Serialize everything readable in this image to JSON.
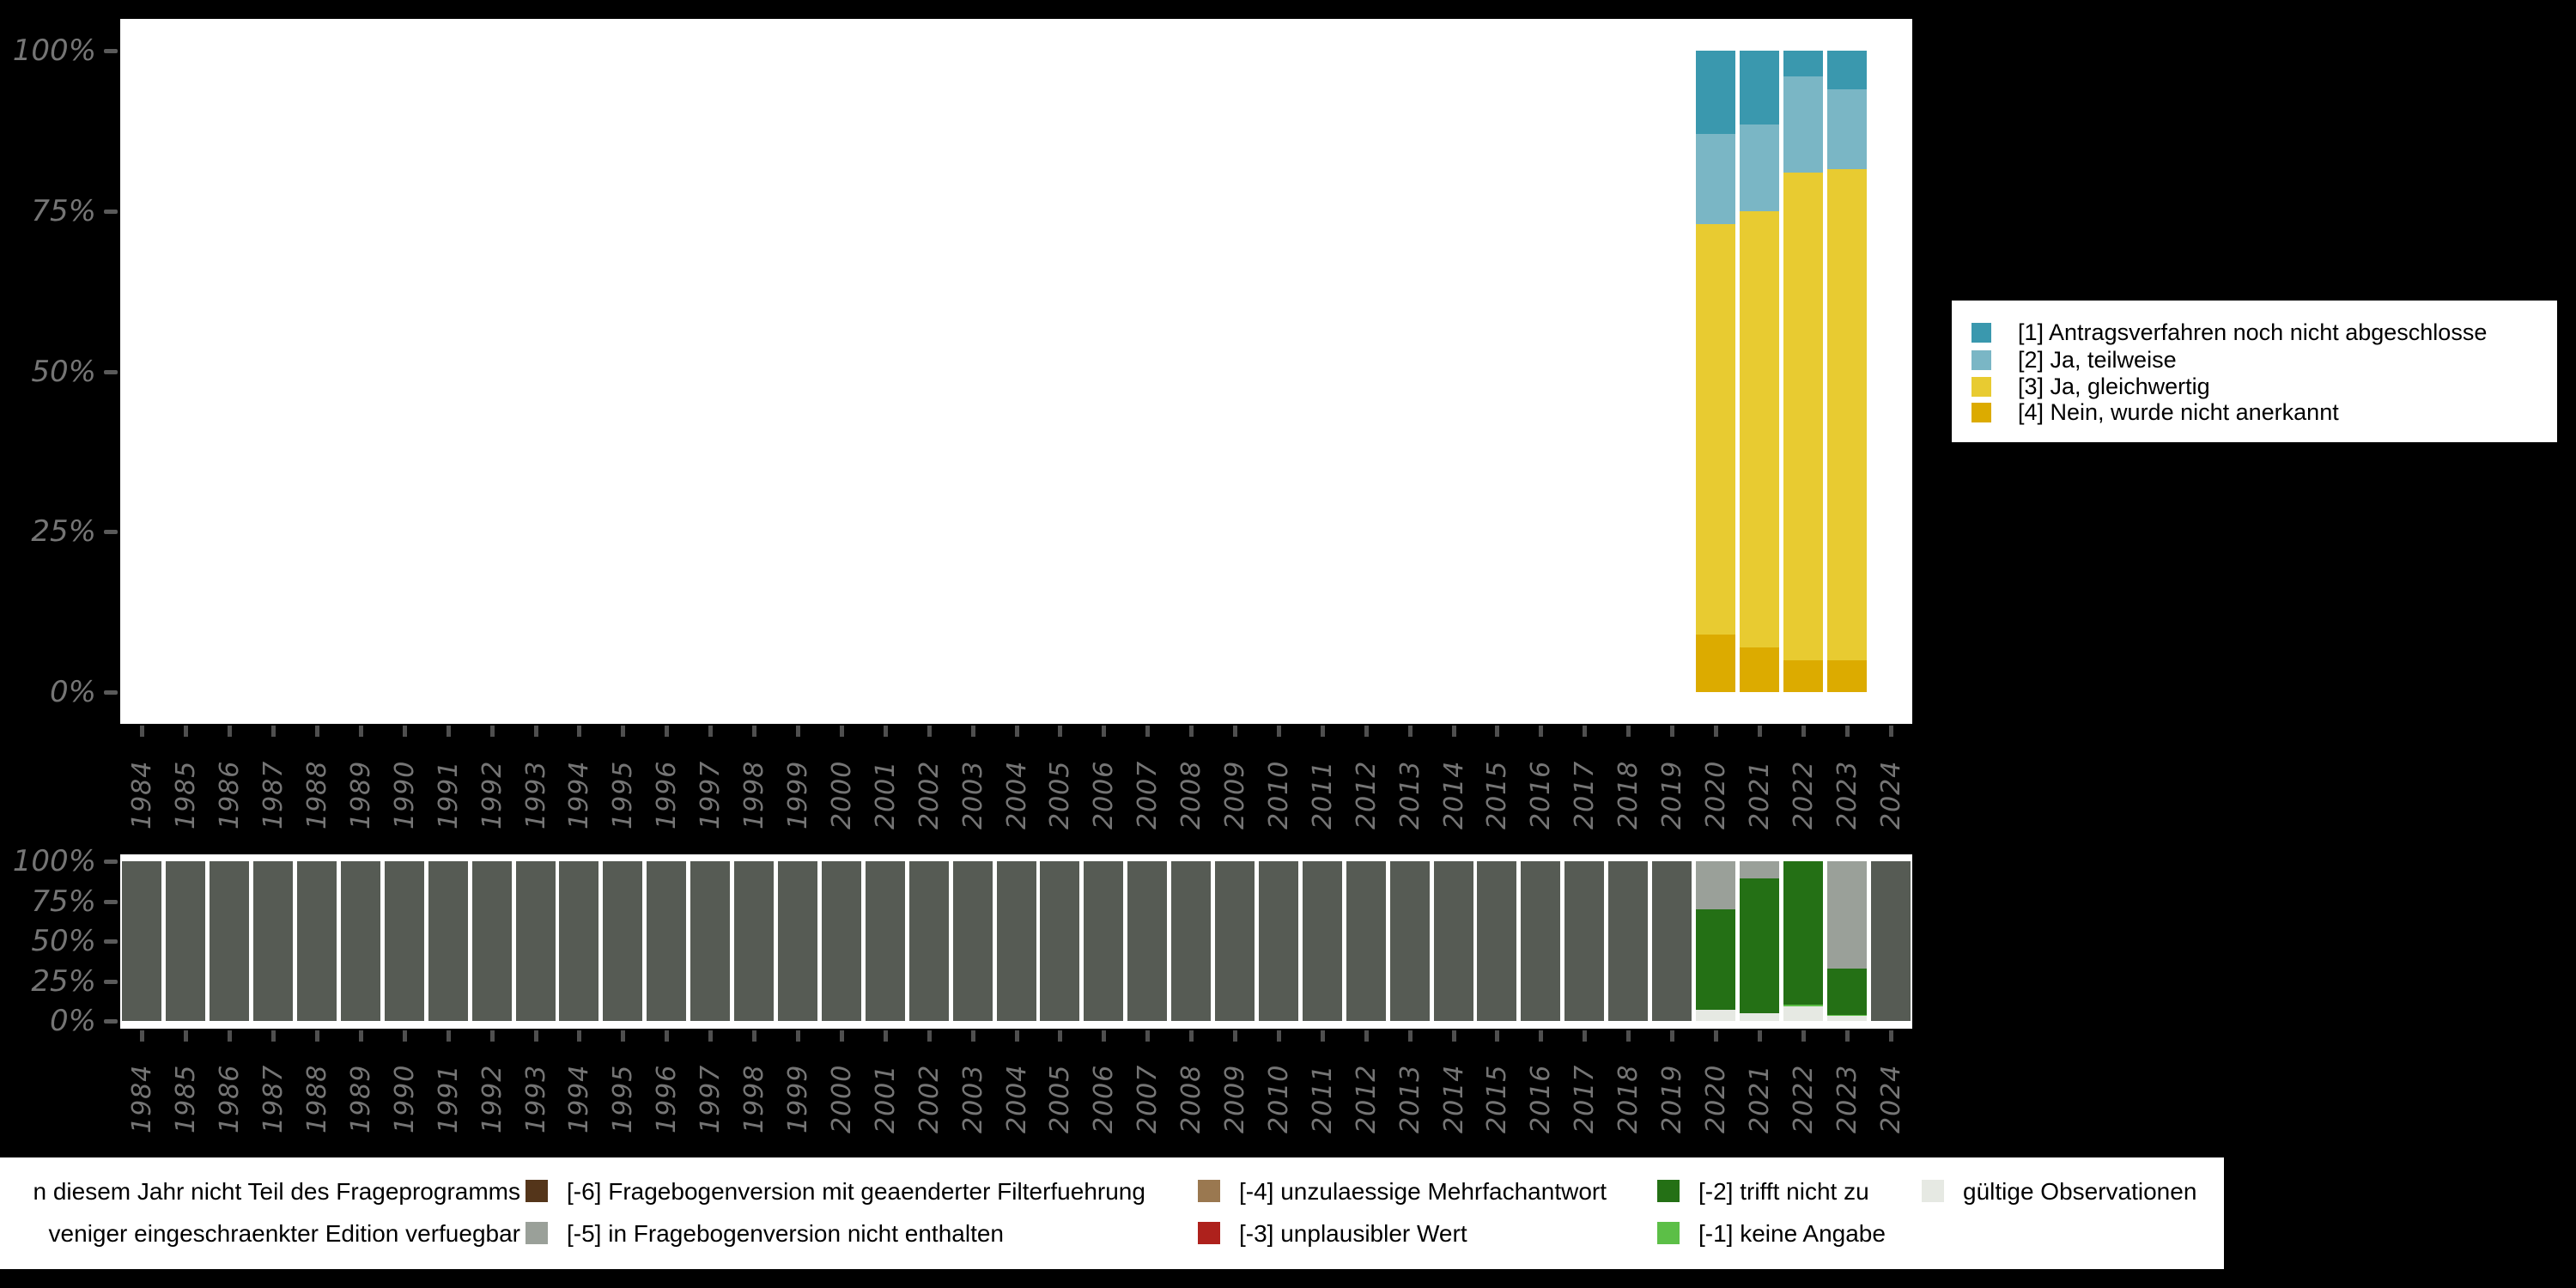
{
  "figure": {
    "background_color": "#000000",
    "panel_color": "#ffffff",
    "axis_text_color": "#757575",
    "axis_tick_color": "#4f4f4f"
  },
  "axis": {
    "years": [
      "1984",
      "1985",
      "1986",
      "1987",
      "1988",
      "1989",
      "1990",
      "1991",
      "1992",
      "1993",
      "1994",
      "1995",
      "1996",
      "1997",
      "1998",
      "1999",
      "2000",
      "2001",
      "2002",
      "2003",
      "2004",
      "2005",
      "2006",
      "2007",
      "2008",
      "2009",
      "2010",
      "2011",
      "2012",
      "2013",
      "2014",
      "2015",
      "2016",
      "2017",
      "2018",
      "2019",
      "2020",
      "2021",
      "2022",
      "2023",
      "2024"
    ],
    "percent_ticks": [
      "100%",
      "75%",
      "50%",
      "25%",
      "0%"
    ]
  },
  "chart_data": [
    {
      "type": "bar",
      "stacked": true,
      "title": "",
      "categories": [
        "1984",
        "1985",
        "1986",
        "1987",
        "1988",
        "1989",
        "1990",
        "1991",
        "1992",
        "1993",
        "1994",
        "1995",
        "1996",
        "1997",
        "1998",
        "1999",
        "2000",
        "2001",
        "2002",
        "2003",
        "2004",
        "2005",
        "2006",
        "2007",
        "2008",
        "2009",
        "2010",
        "2011",
        "2012",
        "2013",
        "2014",
        "2015",
        "2016",
        "2017",
        "2018",
        "2019",
        "2020",
        "2021",
        "2022",
        "2023",
        "2024"
      ],
      "ylim": [
        0,
        100
      ],
      "ytick_labels": [
        "0%",
        "25%",
        "50%",
        "75%",
        "100%"
      ],
      "legend_position": "right",
      "series": [
        {
          "name": "[1] Antragsverfahren noch nicht abgeschlosse",
          "color": "#3a98ae",
          "values_by_year": {
            "2020": 13,
            "2021": 11.5,
            "2022": 4,
            "2023": 6
          }
        },
        {
          "name": "[2] Ja, teilweise",
          "color": "#7ab6c5",
          "values_by_year": {
            "2020": 14,
            "2021": 13.5,
            "2022": 15,
            "2023": 12.5
          }
        },
        {
          "name": "[3] Ja, gleichwertig",
          "color": "#e8cb31",
          "values_by_year": {
            "2020": 64,
            "2021": 68,
            "2022": 76,
            "2023": 76.5
          }
        },
        {
          "name": "[4] Nein, wurde nicht anerkannt",
          "color": "#dcab00",
          "values_by_year": {
            "2020": 9,
            "2021": 7,
            "2022": 5,
            "2023": 5
          }
        }
      ]
    },
    {
      "type": "bar",
      "stacked": true,
      "title": "",
      "categories": [
        "1984",
        "1985",
        "1986",
        "1987",
        "1988",
        "1989",
        "1990",
        "1991",
        "1992",
        "1993",
        "1994",
        "1995",
        "1996",
        "1997",
        "1998",
        "1999",
        "2000",
        "2001",
        "2002",
        "2003",
        "2004",
        "2005",
        "2006",
        "2007",
        "2008",
        "2009",
        "2010",
        "2011",
        "2012",
        "2013",
        "2014",
        "2015",
        "2016",
        "2017",
        "2018",
        "2019",
        "2020",
        "2021",
        "2022",
        "2023",
        "2024"
      ],
      "ylim": [
        0,
        100
      ],
      "ytick_labels": [
        "0%",
        "25%",
        "50%",
        "75%",
        "100%"
      ],
      "legend_position": "bottom",
      "series": [
        {
          "name": "gültige Observationen",
          "color": "#e6e9e3",
          "values_by_year": {
            "2020": 7,
            "2021": 5,
            "2022": 9,
            "2023": 3
          }
        },
        {
          "name": "[-1] keine Angabe",
          "color": "#5cbf47",
          "values_by_year": {
            "2022": 1,
            "2023": 1
          }
        },
        {
          "name": "[-2] trifft nicht zu",
          "color": "#247015",
          "values_by_year": {
            "2020": 63,
            "2021": 84,
            "2022": 90,
            "2023": 29
          }
        },
        {
          "name": "[-5] in Fragebogenversion nicht enthalten",
          "color": "#9aa099",
          "values_by_year": {
            "2020": 30,
            "2021": 11,
            "2023": 67
          }
        },
        {
          "name": "in diesem Jahr nicht Teil des Frageprogramms",
          "color": "#565b54",
          "values_by_year": {
            "1984": 100,
            "1985": 100,
            "1986": 100,
            "1987": 100,
            "1988": 100,
            "1989": 100,
            "1990": 100,
            "1991": 100,
            "1992": 100,
            "1993": 100,
            "1994": 100,
            "1995": 100,
            "1996": 100,
            "1997": 100,
            "1998": 100,
            "1999": 100,
            "2000": 100,
            "2001": 100,
            "2002": 100,
            "2003": 100,
            "2004": 100,
            "2005": 100,
            "2006": 100,
            "2007": 100,
            "2008": 100,
            "2009": 100,
            "2010": 100,
            "2011": 100,
            "2012": 100,
            "2013": 100,
            "2014": 100,
            "2015": 100,
            "2016": 100,
            "2017": 100,
            "2018": 100,
            "2019": 100,
            "2024": 100
          }
        }
      ]
    }
  ],
  "top_legend": {
    "items": [
      {
        "swatch_color": "#3a98ae",
        "label": "[1] Antragsverfahren noch nicht abgeschlosse"
      },
      {
        "swatch_color": "#7ab6c5",
        "label": "[2] Ja, teilweise"
      },
      {
        "swatch_color": "#e8cb31",
        "label": "[3] Ja, gleichwertig"
      },
      {
        "swatch_color": "#dcab00",
        "label": "[4] Nein, wurde nicht anerkannt"
      }
    ]
  },
  "bottom_legend": {
    "columns": [
      {
        "rows": [
          {
            "label": "n diesem Jahr nicht Teil des Frageprogramms"
          },
          {
            "label": "veniger eingeschraenkter Edition verfuegbar"
          }
        ]
      },
      {
        "rows": [
          {
            "swatch_color": "#54351a",
            "label": "[-6] Fragebogenversion mit geaenderter Filterfuehrung"
          },
          {
            "swatch_color": "#9aa099",
            "label": "[-5] in Fragebogenversion nicht enthalten"
          }
        ]
      },
      {
        "rows": [
          {
            "swatch_color": "#9a7850",
            "label": "[-4] unzulaessige Mehrfachantwort"
          },
          {
            "swatch_color": "#ae211c",
            "label": "[-3] unplausibler Wert"
          }
        ]
      },
      {
        "rows": [
          {
            "swatch_color": "#247015",
            "label": "[-2] trifft nicht zu"
          },
          {
            "swatch_color": "#5cbf47",
            "label": "[-1] keine Angabe"
          }
        ]
      },
      {
        "rows": [
          {
            "swatch_color": "#e6e9e3",
            "label": "gültige Observationen"
          }
        ]
      }
    ]
  }
}
